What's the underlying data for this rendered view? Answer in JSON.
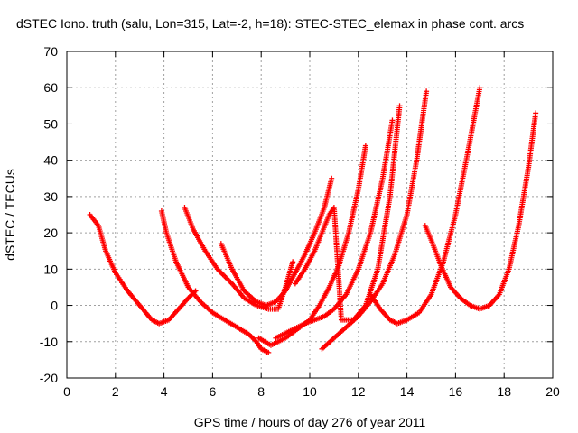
{
  "chart_data": {
    "type": "scatter",
    "title": "dSTEC Iono. truth (salu, Lon=315, Lat=-2, h=18): STEC-STEC_elemax in phase cont. arcs",
    "xlabel": "GPS time / hours of day 276 of year 2011",
    "ylabel": "dSTEC  / TECUs",
    "xlim": [
      0,
      20
    ],
    "ylim": [
      -20,
      70
    ],
    "xticks": [
      0,
      2,
      4,
      6,
      8,
      10,
      12,
      14,
      16,
      18,
      20
    ],
    "yticks": [
      -20,
      -10,
      0,
      10,
      20,
      30,
      40,
      50,
      60,
      70
    ],
    "grid": true,
    "marker": "+",
    "color": "#ff0000",
    "series": [
      {
        "x": [
          0.95,
          1.3,
          1.6,
          2.0,
          2.5,
          3.0,
          3.5,
          3.8,
          4.2,
          4.6,
          5.0,
          5.3
        ],
        "y": [
          25,
          22,
          15,
          9,
          4,
          0,
          -4,
          -5,
          -4,
          -1,
          2,
          4
        ]
      },
      {
        "x": [
          3.9,
          4.1,
          4.5,
          5.0,
          5.5,
          6.0,
          6.5,
          7.0,
          7.5,
          7.8,
          8.0,
          8.3
        ],
        "y": [
          26,
          20,
          12,
          5,
          1,
          -2,
          -4,
          -6,
          -8,
          -10,
          -12,
          -13
        ]
      },
      {
        "x": [
          4.85,
          5.2,
          5.7,
          6.2,
          6.8,
          7.3,
          7.8,
          8.3,
          8.7,
          9.0,
          9.3
        ],
        "y": [
          27,
          21,
          15,
          10,
          6,
          2,
          0,
          -1,
          -1,
          5,
          12
        ]
      },
      {
        "x": [
          6.35,
          6.8,
          7.3,
          7.8,
          8.2,
          8.6,
          9.0,
          9.4,
          9.8,
          10.2,
          10.6,
          10.9
        ],
        "y": [
          17,
          10,
          4,
          1,
          0,
          1,
          4,
          9,
          14,
          20,
          27,
          35
        ]
      },
      {
        "x": [
          7.9,
          8.4,
          9.0,
          9.6,
          10.0,
          10.4,
          10.8,
          11.2,
          11.6,
          12.0,
          12.3
        ],
        "y": [
          -9,
          -11,
          -9,
          -6,
          -4,
          0,
          5,
          11,
          20,
          32,
          44
        ]
      },
      {
        "x": [
          8.6,
          9.2,
          9.8,
          10.2,
          10.6,
          11.0,
          11.5,
          12.0,
          12.5,
          13.0,
          13.4
        ],
        "y": [
          -9,
          -7,
          -5,
          -4,
          -3,
          -1,
          3,
          10,
          20,
          35,
          51
        ]
      },
      {
        "x": [
          9.4,
          9.8,
          10.2,
          10.5,
          10.8,
          11.0,
          11.3,
          11.8,
          12.3,
          12.8,
          13.3,
          13.7
        ],
        "y": [
          6,
          10,
          15,
          20,
          25,
          27,
          -4,
          -4,
          0,
          10,
          30,
          55
        ]
      },
      {
        "x": [
          10.5,
          11.0,
          11.5,
          12.0,
          12.5,
          13.0,
          13.5,
          14.0,
          14.4,
          14.8
        ],
        "y": [
          -12,
          -9,
          -6,
          -3,
          1,
          6,
          14,
          25,
          40,
          59
        ]
      },
      {
        "x": [
          12.5,
          12.9,
          13.3,
          13.6,
          14.0,
          14.5,
          15.0,
          15.5,
          16.0,
          16.5,
          17.0
        ],
        "y": [
          3,
          -1,
          -4,
          -5,
          -4,
          -2,
          3,
          12,
          25,
          42,
          60
        ]
      },
      {
        "x": [
          14.75,
          15.0,
          15.4,
          15.8,
          16.2,
          16.6,
          17.0,
          17.4,
          17.8,
          18.2,
          18.6,
          19.0,
          19.3
        ],
        "y": [
          22,
          18,
          11,
          5,
          2,
          0,
          -1,
          0,
          3,
          10,
          22,
          38,
          53
        ]
      }
    ]
  }
}
